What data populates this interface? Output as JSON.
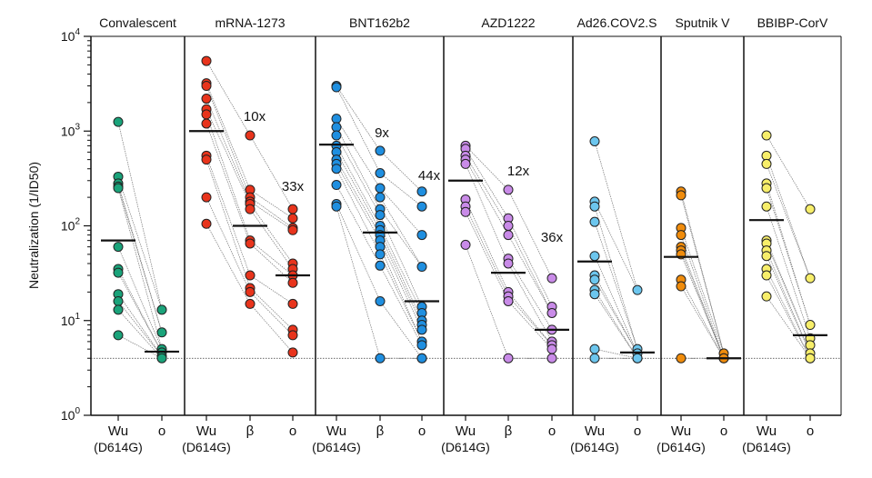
{
  "chart_data": {
    "type": "scatter",
    "ylabel": "Neutralization (1/ID50)",
    "yscale": "log",
    "ylim": [
      1,
      10000
    ],
    "yticks": [
      "10^0",
      "10^1",
      "10^2",
      "10^3",
      "10^4"
    ],
    "limit_of_detection": 4,
    "panels": [
      {
        "title": "Convalescent",
        "color": "#1aa37a",
        "groups": [
          {
            "label": "Wu",
            "sublabel": "(D614G)",
            "gmt": 70,
            "values": [
              1250,
              330,
              280,
              260,
              250,
              60,
              35,
              32,
              19,
              16,
              13,
              7
            ]
          },
          {
            "label": "o",
            "gmt": 4.7,
            "values": [
              13,
              7.5,
              5,
              4.6,
              4.2,
              4
            ]
          }
        ]
      },
      {
        "title": "mRNA-1273",
        "color": "#e8341c",
        "folds": [
          "10x",
          "33x"
        ],
        "groups": [
          {
            "label": "Wu",
            "sublabel": "(D614G)",
            "gmt": 1000,
            "values": [
              5500,
              3200,
              3000,
              2200,
              1700,
              1500,
              1200,
              550,
              500,
              200,
              105
            ]
          },
          {
            "label": "β",
            "gmt": 100,
            "values": [
              900,
              240,
              200,
              180,
              170,
              150,
              70,
              65,
              30,
              22,
              20,
              15
            ]
          },
          {
            "label": "o",
            "gmt": 30,
            "values": [
              150,
              120,
              95,
              90,
              40,
              35,
              30,
              25,
              15,
              8,
              7,
              4.6
            ]
          }
        ]
      },
      {
        "title": "BNT162b2",
        "color": "#1f8fe0",
        "folds": [
          "9x",
          "44x"
        ],
        "groups": [
          {
            "label": "Wu",
            "sublabel": "(D614G)",
            "gmt": 720,
            "values": [
              3000,
              2900,
              1350,
              1100,
              900,
              700,
              600,
              500,
              450,
              400,
              270,
              170,
              160
            ]
          },
          {
            "label": "β",
            "gmt": 85,
            "values": [
              620,
              360,
              250,
              200,
              150,
              130,
              100,
              90,
              80,
              70,
              60,
              50,
              38,
              16,
              4
            ]
          },
          {
            "label": "o",
            "gmt": 16,
            "values": [
              230,
              160,
              80,
              37,
              14,
              12,
              10,
              9,
              8,
              6,
              5.5,
              4,
              4
            ]
          }
        ]
      },
      {
        "title": "AZD1222",
        "color": "#c98be8",
        "folds": [
          "12x",
          "36x"
        ],
        "groups": [
          {
            "label": "Wu",
            "sublabel": "(D614G)",
            "gmt": 300,
            "values": [
              700,
              650,
              550,
              500,
              450,
              190,
              160,
              140,
              63
            ]
          },
          {
            "label": "β",
            "gmt": 32,
            "values": [
              240,
              120,
              100,
              80,
              45,
              40,
              20,
              18,
              16,
              4
            ]
          },
          {
            "label": "o",
            "gmt": 8,
            "values": [
              28,
              14,
              12,
              8,
              6,
              5.5,
              5,
              4
            ]
          }
        ]
      },
      {
        "title": "Ad26.COV2.S",
        "color": "#6cc6ee",
        "groups": [
          {
            "label": "Wu",
            "sublabel": "(D614G)",
            "gmt": 42,
            "values": [
              780,
              180,
              160,
              110,
              48,
              30,
              27,
              21,
              19,
              5,
              4
            ]
          },
          {
            "label": "o",
            "gmt": 4.6,
            "values": [
              21,
              5,
              4.5,
              4,
              4
            ]
          }
        ]
      },
      {
        "title": "Sputnik V",
        "color": "#f08c0c",
        "groups": [
          {
            "label": "Wu",
            "sublabel": "(D614G)",
            "gmt": 47,
            "values": [
              230,
              210,
              95,
              80,
              60,
              55,
              50,
              27,
              23,
              4
            ]
          },
          {
            "label": "o",
            "gmt": 4,
            "values": [
              4.5,
              4,
              4
            ]
          }
        ]
      },
      {
        "title": "BBIBP-CorV",
        "color": "#f7ee6a",
        "groups": [
          {
            "label": "Wu",
            "sublabel": "(D614G)",
            "gmt": 115,
            "values": [
              900,
              550,
              450,
              280,
              250,
              160,
              70,
              65,
              55,
              48,
              35,
              30,
              18
            ]
          },
          {
            "label": "o",
            "gmt": 7,
            "values": [
              150,
              28,
              9,
              6.5,
              5.5,
              4.5,
              4,
              4
            ]
          }
        ]
      }
    ]
  }
}
